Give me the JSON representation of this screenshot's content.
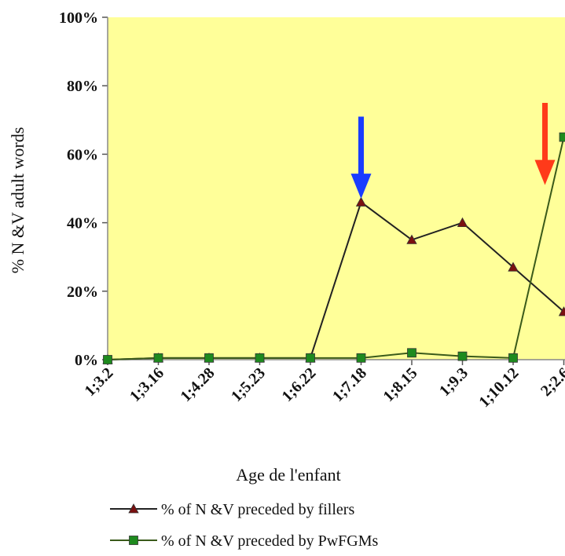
{
  "chart_data": {
    "type": "line",
    "title": "",
    "xlabel": "Age de l'enfant",
    "ylabel": "% N &V adult words",
    "ylim": [
      0,
      100
    ],
    "y_ticks": [
      "0%",
      "20%",
      "40%",
      "60%",
      "80%",
      "100%"
    ],
    "categories": [
      "1;3.2",
      "1;3.16",
      "1;4.28",
      "1;5.23",
      "1;6.22",
      "1;7.18",
      "1;8.15",
      "1;9.3",
      "1;10.12",
      "2;2.6"
    ],
    "series": [
      {
        "name": "% of N &V preceded by fillers",
        "color": "#7a1010",
        "marker": "triangle",
        "values": [
          0,
          0.5,
          0.5,
          0.5,
          0.5,
          46,
          35,
          40,
          27,
          14
        ]
      },
      {
        "name": "% of N &V preceded by PwFGMs",
        "color": "#1e8a1e",
        "marker": "square",
        "values": [
          0,
          0.5,
          0.5,
          0.5,
          0.5,
          0.5,
          2,
          1,
          0.5,
          65
        ]
      }
    ],
    "annotations": [
      {
        "type": "arrow",
        "color": "#1a3cff",
        "category_index": 5,
        "y_from": 71,
        "y_to": 47
      },
      {
        "type": "arrow",
        "color": "#ff3a1a",
        "category_index": 9,
        "y_from": 75,
        "y_to": 51
      }
    ],
    "plot_background": "#ffff99",
    "grid": false,
    "legend_position": "bottom"
  }
}
